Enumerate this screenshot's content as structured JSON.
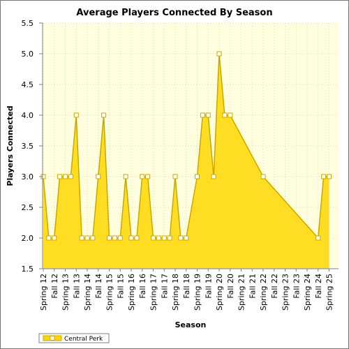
{
  "chart_data": {
    "type": "area",
    "title": "Average Players Connected By Season",
    "xlabel": "Season",
    "ylabel": "Players Connected",
    "ylim": [
      1.5,
      5.5
    ],
    "yticks": [
      "1.5",
      "2.0",
      "2.5",
      "3.0",
      "3.5",
      "4.0",
      "4.5",
      "5.0",
      "5.5"
    ],
    "x_tick_labels": [
      "Spring 12",
      "Fall 12",
      "Spring 13",
      "Fall 13",
      "Spring 14",
      "Fall 14",
      "Spring 15",
      "Fall 15",
      "Spring 16",
      "Fall 16",
      "Spring 17",
      "Fall 17",
      "Spring 18",
      "Fall 18",
      "Spring 19",
      "Fall 19",
      "Spring 20",
      "Fall 20",
      "Spring 21",
      "Fall 21",
      "Spring 22",
      "Fall 22",
      "Spring 23",
      "Fall 23",
      "Spring 24",
      "Fall 24",
      "Spring 25"
    ],
    "grid": true,
    "legend_placement": "bottom-left",
    "series": [
      {
        "name": "Central Perk",
        "color": "#ffd700",
        "points": [
          {
            "x": 0,
            "y": 3.0
          },
          {
            "x": 0.5,
            "y": 2.0
          },
          {
            "x": 1,
            "y": 2.0
          },
          {
            "x": 1.5,
            "y": 3.0
          },
          {
            "x": 2,
            "y": 3.0
          },
          {
            "x": 2.5,
            "y": 3.0
          },
          {
            "x": 3,
            "y": 4.0
          },
          {
            "x": 3.5,
            "y": 2.0
          },
          {
            "x": 4,
            "y": 2.0
          },
          {
            "x": 4.5,
            "y": 2.0
          },
          {
            "x": 5,
            "y": 3.0
          },
          {
            "x": 5.5,
            "y": 4.0
          },
          {
            "x": 6,
            "y": 2.0
          },
          {
            "x": 6.5,
            "y": 2.0
          },
          {
            "x": 7,
            "y": 2.0
          },
          {
            "x": 7.5,
            "y": 3.0
          },
          {
            "x": 8,
            "y": 2.0
          },
          {
            "x": 8.5,
            "y": 2.0
          },
          {
            "x": 9,
            "y": 3.0
          },
          {
            "x": 9.5,
            "y": 3.0
          },
          {
            "x": 10,
            "y": 2.0
          },
          {
            "x": 10.5,
            "y": 2.0
          },
          {
            "x": 11,
            "y": 2.0
          },
          {
            "x": 11.5,
            "y": 2.0
          },
          {
            "x": 12,
            "y": 3.0
          },
          {
            "x": 12.5,
            "y": 2.0
          },
          {
            "x": 13,
            "y": 2.0
          },
          {
            "x": 14,
            "y": 3.0
          },
          {
            "x": 14.5,
            "y": 4.0
          },
          {
            "x": 15,
            "y": 4.0
          },
          {
            "x": 15.5,
            "y": 3.0
          },
          {
            "x": 16,
            "y": 5.0
          },
          {
            "x": 16.5,
            "y": 4.0
          },
          {
            "x": 17,
            "y": 4.0
          },
          {
            "x": 20,
            "y": 3.0
          },
          {
            "x": 25,
            "y": 2.0
          },
          {
            "x": 25.5,
            "y": 3.0
          },
          {
            "x": 26,
            "y": 3.0
          }
        ]
      }
    ]
  }
}
